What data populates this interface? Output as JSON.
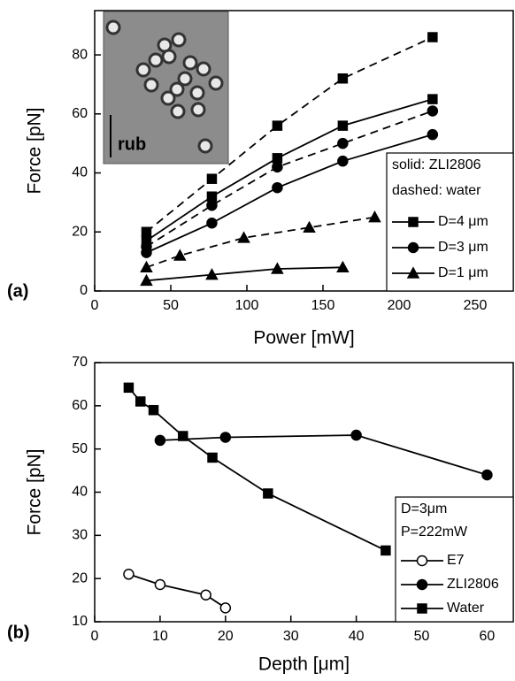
{
  "chart_data": [
    {
      "type": "line",
      "panel_label": "(a)",
      "x_label": "Power [mW]",
      "y_label": "Force [pN]",
      "inset_label": "rub",
      "xlim": [
        0,
        275
      ],
      "ylim": [
        0,
        95
      ],
      "xticks": [
        0,
        50,
        100,
        150,
        200,
        250
      ],
      "yticks": [
        0,
        20,
        40,
        60,
        80
      ],
      "legend_notes": [
        "solid: ZLI2806",
        "dashed: water"
      ],
      "legend": "lower right",
      "series": [
        {
          "name": "D=4 μm",
          "color": "#000000",
          "marker": "square",
          "style": "solid",
          "x": [
            34,
            77,
            120,
            163,
            222
          ],
          "values": [
            17,
            32,
            45,
            56,
            65
          ]
        },
        {
          "color": "#000000",
          "marker": "square",
          "style": "dashed",
          "x": [
            34,
            77,
            120,
            163,
            222
          ],
          "values": [
            20,
            38,
            56,
            72,
            86
          ]
        },
        {
          "name": "D=3 μm",
          "color": "#000000",
          "marker": "circle",
          "style": "solid",
          "x": [
            34,
            77,
            120,
            163,
            222
          ],
          "values": [
            13,
            23,
            35,
            44,
            53
          ]
        },
        {
          "color": "#000000",
          "marker": "circle",
          "style": "dashed",
          "x": [
            34,
            77,
            120,
            163,
            222
          ],
          "values": [
            15,
            29,
            42,
            50,
            61
          ]
        },
        {
          "name": "D=1 μm",
          "color": "#000000",
          "marker": "triangle",
          "style": "solid",
          "x": [
            34,
            77,
            120,
            163
          ],
          "values": [
            3.5,
            5.5,
            7.5,
            8
          ]
        },
        {
          "color": "#000000",
          "marker": "triangle",
          "style": "dashed",
          "x": [
            34,
            56,
            98,
            141,
            184
          ],
          "values": [
            8,
            12,
            18,
            21.5,
            25
          ]
        }
      ]
    },
    {
      "type": "line",
      "panel_label": "(b)",
      "x_label": "Depth [μm]",
      "y_label": "Force [pN]",
      "xlim": [
        0,
        64
      ],
      "ylim": [
        10,
        70
      ],
      "xticks": [
        0,
        10,
        20,
        30,
        40,
        50,
        60
      ],
      "yticks": [
        10,
        20,
        30,
        40,
        50,
        60,
        70
      ],
      "legend_notes": [
        "D=3μm",
        "P=222mW"
      ],
      "legend": "lower right",
      "series": [
        {
          "name": "E7",
          "color": "#000000",
          "marker": "open-circle",
          "style": "solid",
          "x": [
            5.2,
            10,
            17,
            20
          ],
          "values": [
            21,
            18.6,
            16.2,
            13.2
          ]
        },
        {
          "name": "ZLI2806",
          "color": "#000000",
          "marker": "circle",
          "style": "solid",
          "x": [
            10,
            20,
            40,
            60
          ],
          "values": [
            52,
            52.7,
            53.2,
            44
          ]
        },
        {
          "name": "Water",
          "color": "#000000",
          "marker": "square",
          "style": "solid",
          "x": [
            5.2,
            7,
            9,
            13.5,
            18,
            26.5,
            44.5
          ],
          "values": [
            64.2,
            61,
            59,
            53,
            48,
            39.7,
            26.5
          ]
        }
      ]
    }
  ]
}
